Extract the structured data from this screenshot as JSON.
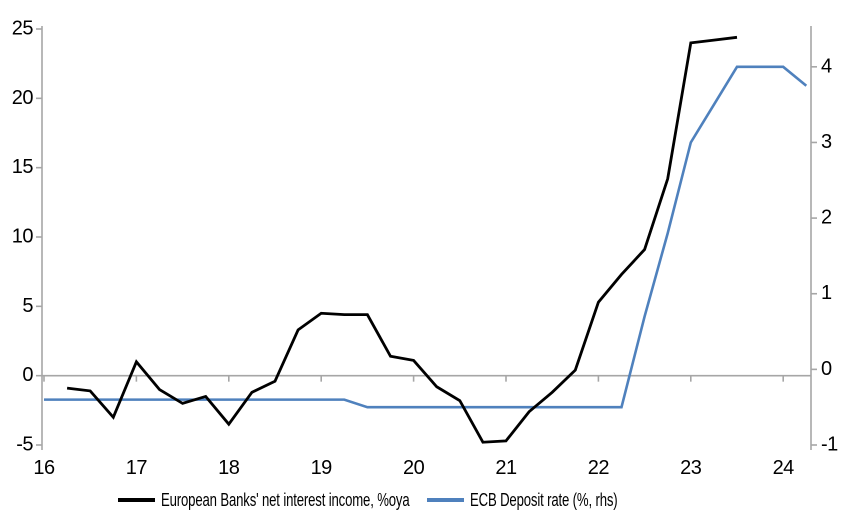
{
  "chart_data": {
    "type": "line",
    "title": "",
    "x_axis": {
      "tick_labels": [
        "16",
        "17",
        "18",
        "19",
        "20",
        "21",
        "22",
        "23",
        "24"
      ],
      "tick_years": [
        16,
        17,
        18,
        19,
        20,
        21,
        22,
        23,
        24
      ],
      "range": [
        16,
        24.3
      ],
      "period": "quarterly"
    },
    "left_axis": {
      "ticks": [
        -5,
        0,
        5,
        10,
        15,
        20,
        25
      ],
      "range": [
        -5,
        25
      ]
    },
    "right_axis": {
      "ticks": [
        -1,
        0,
        1,
        2,
        3,
        4
      ],
      "range": [
        -1,
        4.5
      ]
    },
    "grid": "zero-line-only",
    "legend_position": "bottom",
    "series": [
      {
        "name": "European Banks' net interest income, %oya",
        "axis": "left",
        "color": "#000000",
        "stroke_width": 2.8,
        "start_quarter": "2016Q2",
        "x": [
          16.25,
          16.5,
          16.75,
          17.0,
          17.25,
          17.5,
          17.75,
          18.0,
          18.25,
          18.5,
          18.75,
          19.0,
          19.25,
          19.5,
          19.75,
          20.0,
          20.25,
          20.5,
          20.75,
          21.0,
          21.25,
          21.5,
          21.75,
          22.0,
          22.25,
          22.5,
          22.75,
          23.0,
          23.25,
          23.5
        ],
        "values": [
          -0.9,
          -1.1,
          -3.0,
          1.0,
          -1.0,
          -2.0,
          -1.5,
          -3.5,
          -1.2,
          -0.4,
          3.3,
          4.5,
          4.4,
          4.4,
          1.4,
          1.1,
          -0.8,
          -1.8,
          -4.8,
          -4.7,
          -2.6,
          -1.2,
          0.4,
          5.3,
          7.3,
          9.1,
          14.2,
          24.0,
          24.2,
          24.4
        ]
      },
      {
        "name": "ECB Deposit rate (%, rhs)",
        "axis": "right",
        "color": "#4F81BD",
        "stroke_width": 2.6,
        "start_quarter": "2016Q1",
        "x": [
          16.0,
          16.25,
          16.5,
          16.75,
          17.0,
          17.25,
          17.5,
          17.75,
          18.0,
          18.25,
          18.5,
          18.75,
          19.0,
          19.25,
          19.5,
          19.75,
          20.0,
          20.25,
          20.5,
          20.75,
          21.0,
          21.25,
          21.5,
          21.75,
          22.0,
          22.25,
          22.5,
          22.75,
          23.0,
          23.25,
          23.5,
          23.75,
          24.0,
          24.25
        ],
        "values": [
          -0.4,
          -0.4,
          -0.4,
          -0.4,
          -0.4,
          -0.4,
          -0.4,
          -0.4,
          -0.4,
          -0.4,
          -0.4,
          -0.4,
          -0.4,
          -0.4,
          -0.5,
          -0.5,
          -0.5,
          -0.5,
          -0.5,
          -0.5,
          -0.5,
          -0.5,
          -0.5,
          -0.5,
          -0.5,
          -0.5,
          0.7,
          1.8,
          3.0,
          3.5,
          4.0,
          4.0,
          4.0,
          3.75
        ]
      }
    ]
  },
  "colors": {
    "axis": "#A6A6A6",
    "zero_line": "#A6A6A6",
    "background": "#FFFFFF",
    "text": "#000000"
  }
}
